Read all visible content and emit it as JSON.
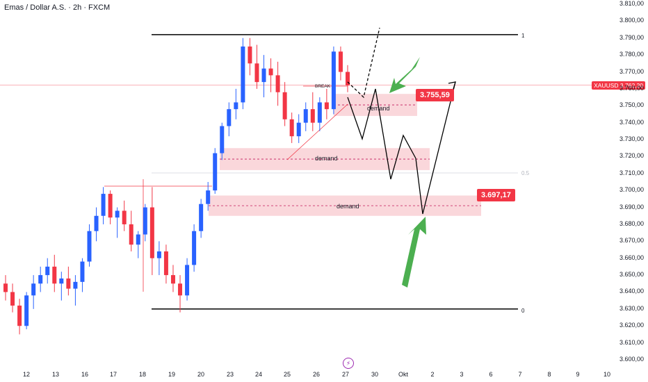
{
  "title": "Emas / Dollar A.S. · 2h · FXCM",
  "symbol_tag": {
    "symbol": "XAUUSD",
    "price": "3.762,20"
  },
  "price_boxes": {
    "upper": "3.755,59",
    "lower": "3.697,17"
  },
  "zones": {
    "upper_demand": "demand",
    "middle_demand": "demand",
    "lower_demand": "demand"
  },
  "annotations": {
    "break": "BREAK"
  },
  "fib_levels": {
    "top": "1",
    "mid": "0.5",
    "bottom": "0"
  },
  "colors": {
    "up": "#2962ff",
    "down": "#f23645",
    "zone": "#f8c6cc",
    "arrow_green": "#4caf50"
  },
  "y_axis_labels": [
    "3.810,00",
    "3.800,00",
    "3.790,00",
    "3.780,00",
    "3.770,00",
    "3.760,00",
    "3.750,00",
    "3.740,00",
    "3.730,00",
    "3.720,00",
    "3.710,00",
    "3.700,00",
    "3.690,00",
    "3.680,00",
    "3.670,00",
    "3.660,00",
    "3.650,00",
    "3.640,00",
    "3.630,00",
    "3.620,00",
    "3.610,00",
    "3.600,00"
  ],
  "x_axis_labels": [
    "12",
    "13",
    "16",
    "17",
    "18",
    "19",
    "20",
    "23",
    "24",
    "25",
    "26",
    "27",
    "30",
    "Okt",
    "2",
    "3",
    "6",
    "7",
    "8",
    "9",
    "10"
  ],
  "chart_data": {
    "type": "candlestick",
    "x_labels": [
      "12",
      "13",
      "16",
      "17",
      "18",
      "19",
      "20",
      "23",
      "24",
      "25",
      "26",
      "27",
      "30",
      "Okt",
      "2",
      "3",
      "6",
      "7",
      "8",
      "9",
      "10"
    ],
    "ylim": [
      3600,
      3815
    ],
    "price_marks": [
      3755.59,
      3697.17
    ],
    "current_price": 3762.2,
    "key_levels": {
      "fib_1": 3792,
      "fib_0": 3630
    },
    "demand_zones": [
      {
        "name": "upper",
        "from": 3744,
        "to": 3757
      },
      {
        "name": "middle",
        "from": 3712,
        "to": 3725
      },
      {
        "name": "lower",
        "from": 3685,
        "to": 3697
      }
    ],
    "ohlc": [
      [
        3645,
        3650,
        3635,
        3640
      ],
      [
        3640,
        3645,
        3628,
        3632
      ],
      [
        3632,
        3636,
        3615,
        3620
      ],
      [
        3620,
        3640,
        3618,
        3638
      ],
      [
        3638,
        3650,
        3630,
        3645
      ],
      [
        3645,
        3655,
        3640,
        3650
      ],
      [
        3650,
        3660,
        3645,
        3655
      ],
      [
        3655,
        3662,
        3640,
        3645
      ],
      [
        3645,
        3652,
        3635,
        3648
      ],
      [
        3648,
        3655,
        3638,
        3642
      ],
      [
        3642,
        3650,
        3632,
        3646
      ],
      [
        3646,
        3660,
        3640,
        3658
      ],
      [
        3658,
        3680,
        3655,
        3676
      ],
      [
        3676,
        3690,
        3670,
        3685
      ],
      [
        3685,
        3702,
        3680,
        3698
      ],
      [
        3698,
        3700,
        3680,
        3684
      ],
      [
        3684,
        3690,
        3672,
        3688
      ],
      [
        3688,
        3694,
        3676,
        3680
      ],
      [
        3680,
        3688,
        3664,
        3668
      ],
      [
        3668,
        3676,
        3660,
        3674
      ],
      [
        3674,
        3692,
        3670,
        3690
      ],
      [
        3690,
        3702,
        3650,
        3660
      ],
      [
        3660,
        3670,
        3650,
        3664
      ],
      [
        3664,
        3668,
        3645,
        3650
      ],
      [
        3650,
        3656,
        3640,
        3645
      ],
      [
        3645,
        3650,
        3628,
        3638
      ],
      [
        3638,
        3660,
        3635,
        3656
      ],
      [
        3656,
        3680,
        3652,
        3676
      ],
      [
        3676,
        3695,
        3672,
        3692
      ],
      [
        3692,
        3705,
        3688,
        3700
      ],
      [
        3700,
        3725,
        3698,
        3722
      ],
      [
        3722,
        3740,
        3718,
        3738
      ],
      [
        3738,
        3752,
        3732,
        3748
      ],
      [
        3748,
        3760,
        3742,
        3752
      ],
      [
        3752,
        3790,
        3748,
        3785
      ],
      [
        3785,
        3790,
        3768,
        3775
      ],
      [
        3775,
        3786,
        3760,
        3764
      ],
      [
        3764,
        3780,
        3755,
        3772
      ],
      [
        3772,
        3778,
        3758,
        3768
      ],
      [
        3768,
        3776,
        3750,
        3758
      ],
      [
        3758,
        3764,
        3738,
        3742
      ],
      [
        3742,
        3746,
        3728,
        3732
      ],
      [
        3732,
        3745,
        3728,
        3740
      ],
      [
        3740,
        3752,
        3735,
        3748
      ],
      [
        3748,
        3758,
        3735,
        3740
      ],
      [
        3740,
        3755,
        3735,
        3752
      ],
      [
        3752,
        3760,
        3742,
        3748
      ],
      [
        3748,
        3785,
        3745,
        3782
      ],
      [
        3782,
        3785,
        3765,
        3770
      ],
      [
        3770,
        3774,
        3758,
        3762
      ]
    ],
    "projections": [
      {
        "name": "upper-path",
        "points": [
          [
            500,
            140
          ],
          [
            521,
            200
          ],
          [
            540,
            128
          ],
          [
            562,
            258
          ],
          [
            580,
            195
          ],
          [
            598,
            228
          ]
        ]
      },
      {
        "name": "lower-path",
        "points": [
          [
            598,
            228
          ],
          [
            608,
            308
          ],
          [
            655,
            118
          ]
        ]
      },
      {
        "name": "dashed-alt",
        "points": [
          [
            500,
            118
          ],
          [
            523,
            140
          ],
          [
            546,
            40
          ]
        ]
      }
    ]
  }
}
